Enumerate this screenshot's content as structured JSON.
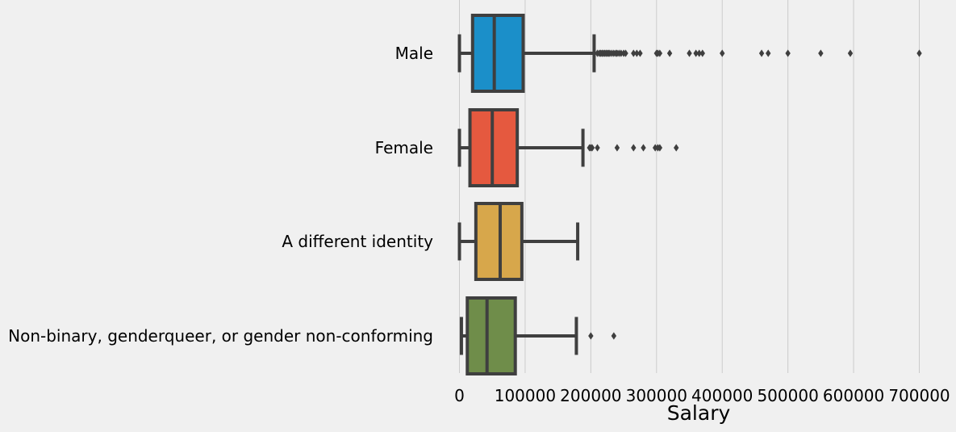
{
  "chart_data": {
    "type": "boxplot",
    "orientation": "horizontal",
    "title": "",
    "xlabel": "Salary",
    "ylabel": "",
    "xlim": [
      -5000,
      740000
    ],
    "xticks": [
      0,
      100000,
      200000,
      300000,
      400000,
      500000,
      600000,
      700000
    ],
    "grid": {
      "x": true,
      "y": false
    },
    "legend": "none",
    "categories": [
      "Male",
      "Female",
      "A different identity",
      "Non-binary, genderqueer, or gender non-conforming"
    ],
    "series": [
      {
        "category": "Male",
        "color": "#1b8fc9",
        "whisker_low": 0,
        "q1": 20000,
        "median": 53000,
        "q3": 97000,
        "whisker_high": 205000,
        "outliers": [
          210000,
          213000,
          215000,
          217000,
          219000,
          221000,
          223000,
          225000,
          227000,
          229000,
          232000,
          235000,
          238000,
          240000,
          243000,
          246000,
          250000,
          253000,
          265000,
          270000,
          275000,
          300000,
          302000,
          305000,
          320000,
          350000,
          360000,
          365000,
          370000,
          400000,
          460000,
          470000,
          500000,
          550000,
          595000,
          700000
        ]
      },
      {
        "category": "Female",
        "color": "#e5593f",
        "whisker_low": 0,
        "q1": 16000,
        "median": 50000,
        "q3": 88000,
        "whisker_high": 188000,
        "outliers": [
          198000,
          200000,
          202000,
          210000,
          240000,
          265000,
          280000,
          298000,
          302000,
          305000,
          330000
        ]
      },
      {
        "category": "A different identity",
        "color": "#d7a74b",
        "whisker_low": 0,
        "q1": 25000,
        "median": 62000,
        "q3": 95000,
        "whisker_high": 180000,
        "outliers": []
      },
      {
        "category": "Non-binary, genderqueer, or gender non-conforming",
        "color": "#6f8d4a",
        "whisker_low": 3000,
        "q1": 12000,
        "median": 42000,
        "q3": 85000,
        "whisker_high": 178000,
        "outliers": [
          200000,
          235000
        ]
      }
    ]
  }
}
